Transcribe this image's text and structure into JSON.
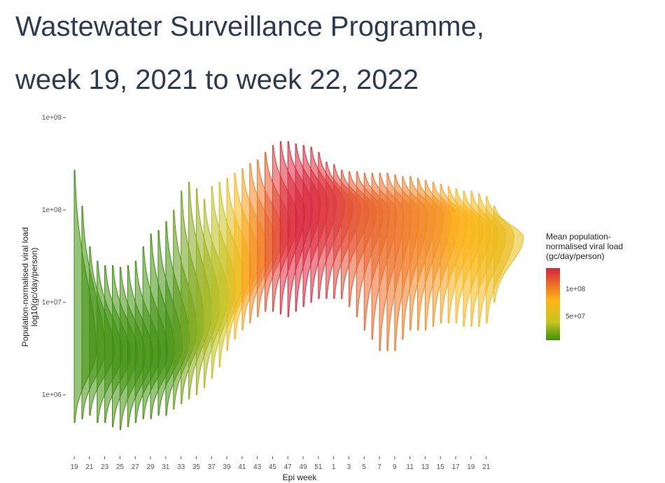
{
  "title_line1": "Wastewater Surveillance Programme,",
  "title_line2": "week 19, 2021 to week 22, 2022",
  "chart_data": {
    "type": "ridgeline",
    "xlabel": "Epi week",
    "ylabel_line1": "Population-normalised viral load",
    "ylabel_line2": "log10(gc/day/person)",
    "y_scale": "log10",
    "ylim": [
      300000,
      1000000000
    ],
    "y_ticks": [
      {
        "value": 1000000000,
        "label": "1e+09"
      },
      {
        "value": 100000000,
        "label": "1e+08"
      },
      {
        "value": 10000000,
        "label": "1e+07"
      },
      {
        "value": 1000000,
        "label": "1e+06"
      }
    ],
    "x_tick_labels": [
      "19",
      "21",
      "23",
      "25",
      "27",
      "29",
      "31",
      "33",
      "35",
      "37",
      "39",
      "41",
      "43",
      "45",
      "47",
      "49",
      "51",
      "1",
      "3",
      "5",
      "7",
      "9",
      "11",
      "13",
      "15",
      "17",
      "19",
      "21"
    ],
    "weeks": [
      "19",
      "20",
      "21",
      "22",
      "23",
      "24",
      "25",
      "26",
      "27",
      "28",
      "29",
      "30",
      "31",
      "32",
      "33",
      "34",
      "35",
      "36",
      "37",
      "38",
      "39",
      "40",
      "41",
      "42",
      "43",
      "44",
      "45",
      "46",
      "47",
      "48",
      "49",
      "50",
      "51",
      "52",
      "1",
      "2",
      "3",
      "4",
      "5",
      "6",
      "7",
      "8",
      "9",
      "10",
      "11",
      "12",
      "13",
      "14",
      "15",
      "16",
      "17",
      "18",
      "19",
      "20",
      "21",
      "22"
    ],
    "median": [
      3000000,
      3000000,
      2900000,
      2800000,
      2700000,
      2700000,
      2700000,
      2700000,
      2800000,
      2900000,
      3000000,
      3400000,
      4000000,
      5000000,
      6000000,
      7500000,
      9500000,
      12000000,
      15000000,
      19000000,
      24000000,
      30000000,
      37000000,
      45000000,
      55000000,
      67000000,
      80000000,
      95000000,
      110000000,
      120000000,
      120000000,
      120000000,
      115000000,
      110000000,
      105000000,
      100000000,
      98000000,
      97000000,
      96000000,
      95000000,
      95000000,
      95000000,
      95000000,
      93000000,
      90000000,
      88000000,
      85000000,
      80000000,
      75000000,
      70000000,
      65000000,
      60000000,
      57000000,
      55000000,
      53000000,
      50000000
    ],
    "upper": [
      270000000,
      110000000,
      40000000,
      28000000,
      25000000,
      25000000,
      24000000,
      25000000,
      28000000,
      40000000,
      55000000,
      60000000,
      75000000,
      100000000,
      160000000,
      200000000,
      170000000,
      130000000,
      180000000,
      200000000,
      220000000,
      250000000,
      280000000,
      320000000,
      350000000,
      420000000,
      500000000,
      550000000,
      550000000,
      520000000,
      500000000,
      480000000,
      420000000,
      330000000,
      310000000,
      270000000,
      260000000,
      260000000,
      250000000,
      250000000,
      250000000,
      250000000,
      240000000,
      230000000,
      230000000,
      220000000,
      210000000,
      200000000,
      190000000,
      180000000,
      170000000,
      160000000,
      160000000,
      150000000,
      140000000,
      110000000
    ],
    "lower": [
      500000,
      550000,
      600000,
      500000,
      500000,
      450000,
      420000,
      450000,
      500000,
      550000,
      550000,
      600000,
      600000,
      700000,
      800000,
      900000,
      1000000,
      1200000,
      1500000,
      2000000,
      3000000,
      4000000,
      5000000,
      6000000,
      7000000,
      8000000,
      8000000,
      7500000,
      7000000,
      8000000,
      9000000,
      10000000,
      11000000,
      11000000,
      11000000,
      11000000,
      9000000,
      7000000,
      5000000,
      4000000,
      3000000,
      3000000,
      3000000,
      4000000,
      5000000,
      5000000,
      5000000,
      5500000,
      6000000,
      6000000,
      6000000,
      5500000,
      5500000,
      5500000,
      6000000,
      10000000
    ],
    "mean_load": [
      5000000,
      5000000,
      4000000,
      3000000,
      3000000,
      3000000,
      3000000,
      3000000,
      3000000,
      3500000,
      4000000,
      4500000,
      5000000,
      7000000,
      9000000,
      12000000,
      15000000,
      20000000,
      25000000,
      30000000,
      40000000,
      50000000,
      60000000,
      70000000,
      80000000,
      95000000,
      110000000,
      125000000,
      130000000,
      130000000,
      130000000,
      125000000,
      120000000,
      115000000,
      110000000,
      100000000,
      95000000,
      90000000,
      88000000,
      85000000,
      82000000,
      80000000,
      78000000,
      75000000,
      72000000,
      70000000,
      67000000,
      65000000,
      60000000,
      55000000,
      52000000,
      50000000,
      48000000,
      46000000,
      44000000,
      42000000
    ],
    "legend": {
      "title_lines": [
        "Mean population-",
        "normalised viral load",
        "(gc/day/person)"
      ],
      "placement": "right",
      "ticks": [
        {
          "value": 100000000,
          "label": "1e+08"
        },
        {
          "value": 50000000,
          "label": "5e+07"
        }
      ],
      "range": [
        5000000,
        130000000
      ],
      "colors": [
        "#d7263d",
        "#fdb515",
        "#3f8f0f"
      ]
    }
  }
}
